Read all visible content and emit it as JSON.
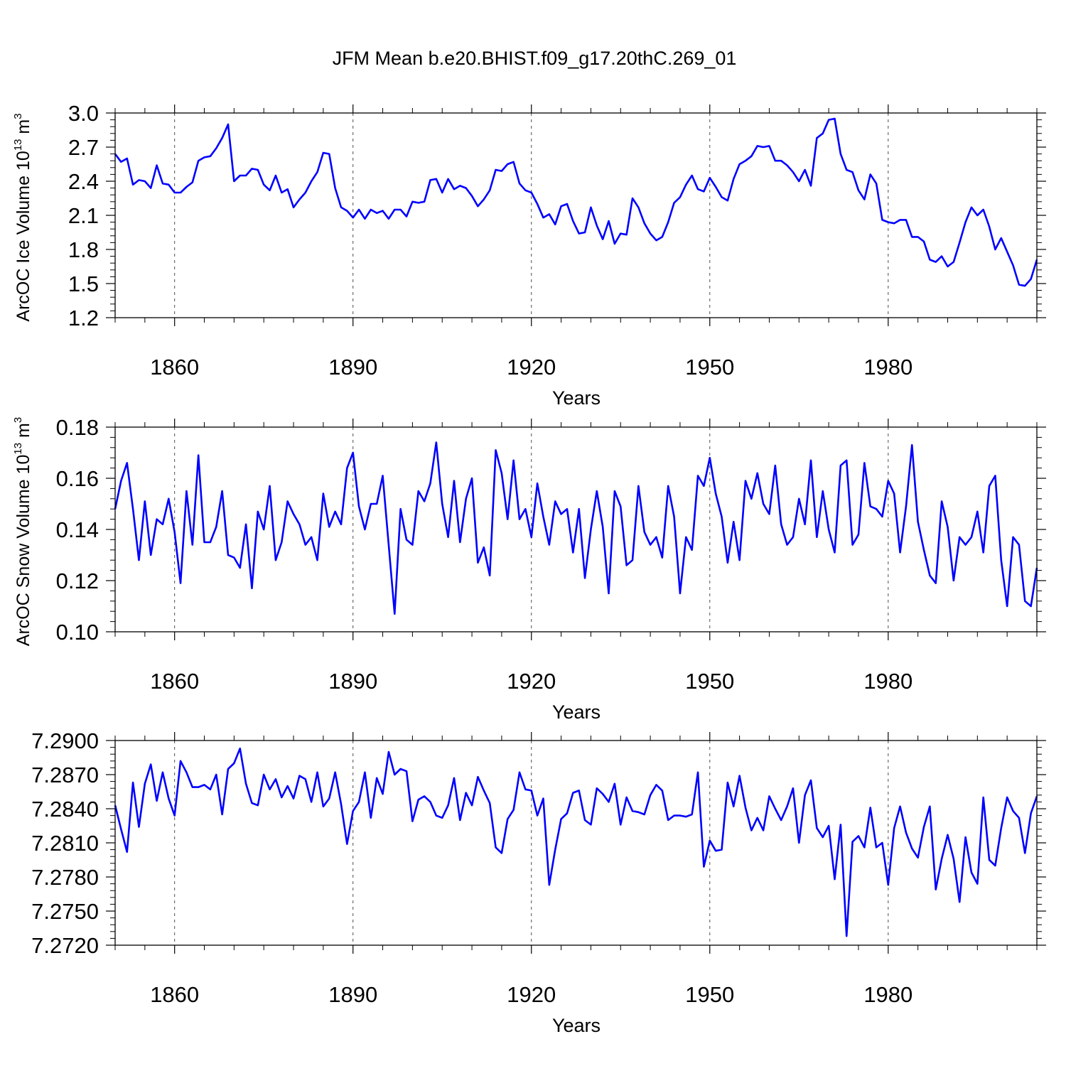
{
  "title": "JFM Mean b.e20.BHIST.f09_g17.20thC.269_01",
  "colors": {
    "series": "#0000ff",
    "axes": "#000000",
    "background": "#ffffff"
  },
  "chart_data": [
    {
      "type": "line",
      "title": "JFM Mean b.e20.BHIST.f09_g17.20thC.269_01",
      "xlabel": "Years",
      "ylabel_parts": [
        "ArcOC Ice Volume 10",
        "13",
        " m",
        "3"
      ],
      "xlim": [
        1850,
        2005
      ],
      "ylim": [
        1.2,
        3.0
      ],
      "xticks": [
        1860,
        1890,
        1920,
        1950,
        1980
      ],
      "xtick_labels": [
        "1860",
        "1890",
        "1920",
        "1950",
        "1980"
      ],
      "yticks": [
        1.2,
        1.5,
        1.8,
        2.1,
        2.4,
        2.7,
        3.0
      ],
      "ytick_labels": [
        "1.2",
        "1.5",
        "1.8",
        "2.1",
        "2.4",
        "2.7",
        "3.0"
      ],
      "x_start": 1850,
      "x_step": 1,
      "grid": "dashed vertical at major x ticks",
      "values": [
        2.64,
        2.57,
        2.6,
        2.37,
        2.41,
        2.4,
        2.34,
        2.54,
        2.38,
        2.37,
        2.3,
        2.3,
        2.35,
        2.39,
        2.58,
        2.61,
        2.62,
        2.69,
        2.78,
        2.9,
        2.4,
        2.45,
        2.45,
        2.51,
        2.5,
        2.37,
        2.32,
        2.45,
        2.3,
        2.33,
        2.17,
        2.24,
        2.3,
        2.4,
        2.48,
        2.65,
        2.64,
        2.34,
        2.17,
        2.14,
        2.08,
        2.15,
        2.07,
        2.15,
        2.12,
        2.14,
        2.07,
        2.15,
        2.15,
        2.09,
        2.22,
        2.21,
        2.22,
        2.41,
        2.42,
        2.3,
        2.42,
        2.33,
        2.36,
        2.34,
        2.27,
        2.18,
        2.24,
        2.32,
        2.5,
        2.49,
        2.55,
        2.57,
        2.38,
        2.32,
        2.3,
        2.2,
        2.08,
        2.11,
        2.02,
        2.18,
        2.2,
        2.05,
        1.94,
        1.95,
        2.17,
        2.01,
        1.89,
        2.05,
        1.85,
        1.94,
        1.93,
        2.25,
        2.17,
        2.03,
        1.94,
        1.88,
        1.91,
        2.04,
        2.21,
        2.26,
        2.37,
        2.45,
        2.33,
        2.31,
        2.43,
        2.35,
        2.26,
        2.23,
        2.42,
        2.55,
        2.58,
        2.62,
        2.71,
        2.7,
        2.71,
        2.58,
        2.58,
        2.54,
        2.48,
        2.4,
        2.5,
        2.36,
        2.78,
        2.82,
        2.94,
        2.95,
        2.64,
        2.5,
        2.48,
        2.32,
        2.24,
        2.46,
        2.38,
        2.06,
        2.04,
        2.03,
        2.06,
        2.06,
        1.91,
        1.91,
        1.87,
        1.71,
        1.69,
        1.74,
        1.65,
        1.69,
        1.86,
        2.04,
        2.17,
        2.1,
        2.15,
        2.0,
        1.8,
        1.9,
        1.78,
        1.66,
        1.49,
        1.48,
        1.54,
        1.71
      ]
    },
    {
      "type": "line",
      "xlabel": "Years",
      "ylabel_parts": [
        "ArcOC Snow Volume 10",
        "13",
        " m",
        "3"
      ],
      "xlim": [
        1850,
        2005
      ],
      "ylim": [
        0.1,
        0.18
      ],
      "xticks": [
        1860,
        1890,
        1920,
        1950,
        1980
      ],
      "xtick_labels": [
        "1860",
        "1890",
        "1920",
        "1950",
        "1980"
      ],
      "yticks": [
        0.1,
        0.12,
        0.14,
        0.16,
        0.18
      ],
      "ytick_labels": [
        "0.10",
        "0.12",
        "0.14",
        "0.16",
        "0.18"
      ],
      "x_start": 1850,
      "x_step": 1,
      "grid": "dashed vertical at major x ticks",
      "values": [
        0.148,
        0.159,
        0.166,
        0.148,
        0.128,
        0.151,
        0.13,
        0.144,
        0.142,
        0.152,
        0.139,
        0.119,
        0.155,
        0.134,
        0.169,
        0.135,
        0.135,
        0.141,
        0.155,
        0.13,
        0.129,
        0.125,
        0.142,
        0.117,
        0.147,
        0.14,
        0.157,
        0.128,
        0.135,
        0.151,
        0.146,
        0.142,
        0.134,
        0.137,
        0.128,
        0.154,
        0.141,
        0.147,
        0.142,
        0.164,
        0.17,
        0.149,
        0.14,
        0.15,
        0.15,
        0.161,
        0.134,
        0.107,
        0.148,
        0.136,
        0.134,
        0.155,
        0.151,
        0.158,
        0.174,
        0.15,
        0.137,
        0.159,
        0.135,
        0.152,
        0.16,
        0.127,
        0.133,
        0.122,
        0.171,
        0.162,
        0.144,
        0.167,
        0.144,
        0.148,
        0.137,
        0.158,
        0.145,
        0.134,
        0.151,
        0.146,
        0.148,
        0.131,
        0.148,
        0.121,
        0.14,
        0.155,
        0.141,
        0.115,
        0.155,
        0.149,
        0.126,
        0.128,
        0.157,
        0.139,
        0.134,
        0.137,
        0.129,
        0.157,
        0.145,
        0.115,
        0.137,
        0.132,
        0.161,
        0.157,
        0.168,
        0.154,
        0.145,
        0.127,
        0.143,
        0.128,
        0.159,
        0.152,
        0.162,
        0.15,
        0.146,
        0.165,
        0.142,
        0.134,
        0.137,
        0.152,
        0.142,
        0.167,
        0.137,
        0.155,
        0.14,
        0.131,
        0.165,
        0.167,
        0.134,
        0.138,
        0.166,
        0.149,
        0.148,
        0.145,
        0.159,
        0.154,
        0.131,
        0.149,
        0.173,
        0.143,
        0.132,
        0.122,
        0.119,
        0.151,
        0.141,
        0.12,
        0.137,
        0.134,
        0.137,
        0.147,
        0.131,
        0.157,
        0.161,
        0.128,
        0.11,
        0.137,
        0.134,
        0.112,
        0.11,
        0.125
      ]
    },
    {
      "type": "line",
      "xlabel": "Years",
      "ylabel_parts": [
        "",
        "",
        "",
        ""
      ],
      "xlim": [
        1850,
        2005
      ],
      "ylim": [
        7.272,
        7.29
      ],
      "xticks": [
        1860,
        1890,
        1920,
        1950,
        1980
      ],
      "xtick_labels": [
        "1860",
        "1890",
        "1920",
        "1950",
        "1980"
      ],
      "yticks": [
        7.272,
        7.275,
        7.278,
        7.281,
        7.284,
        7.287,
        7.29
      ],
      "ytick_labels": [
        "7.2720",
        "7.2750",
        "7.2780",
        "7.2810",
        "7.2840",
        "7.2870",
        "7.2900"
      ],
      "x_start": 1850,
      "x_step": 1,
      "grid": "dashed vertical at major x ticks",
      "values": [
        7.2843,
        7.2822,
        7.2802,
        7.2863,
        7.2824,
        7.2862,
        7.2879,
        7.2847,
        7.2872,
        7.2849,
        7.2834,
        7.2882,
        7.2872,
        7.2859,
        7.2859,
        7.2861,
        7.2857,
        7.287,
        7.2835,
        7.2875,
        7.288,
        7.2893,
        7.2862,
        7.2845,
        7.2843,
        7.287,
        7.2857,
        7.2866,
        7.285,
        7.286,
        7.2849,
        7.2869,
        7.2866,
        7.2846,
        7.2872,
        7.2842,
        7.2849,
        7.2872,
        7.2844,
        7.2809,
        7.2838,
        7.2846,
        7.2872,
        7.2832,
        7.2867,
        7.2853,
        7.289,
        7.287,
        7.2875,
        7.2873,
        7.2829,
        7.2848,
        7.2851,
        7.2846,
        7.2834,
        7.2832,
        7.2843,
        7.2867,
        7.283,
        7.2854,
        7.2843,
        7.2868,
        7.2856,
        7.2845,
        7.2806,
        7.2801,
        7.2831,
        7.2839,
        7.2872,
        7.2857,
        7.2856,
        7.2834,
        7.2849,
        7.2773,
        7.2804,
        7.2831,
        7.2836,
        7.2854,
        7.2856,
        7.283,
        7.2826,
        7.2858,
        7.2853,
        7.2846,
        7.2862,
        7.2826,
        7.285,
        7.2838,
        7.2837,
        7.2835,
        7.2852,
        7.2861,
        7.2856,
        7.283,
        7.2834,
        7.2834,
        7.2833,
        7.2835,
        7.2872,
        7.2789,
        7.2812,
        7.2803,
        7.2804,
        7.2863,
        7.2842,
        7.2869,
        7.2841,
        7.2821,
        7.2832,
        7.2821,
        7.2851,
        7.284,
        7.283,
        7.2842,
        7.2858,
        7.281,
        7.2852,
        7.2865,
        7.2823,
        7.2815,
        7.2825,
        7.2778,
        7.2826,
        7.2728,
        7.2811,
        7.2816,
        7.2806,
        7.2841,
        7.2806,
        7.281,
        7.2773,
        7.2823,
        7.2842,
        7.2819,
        7.2805,
        7.2797,
        7.2824,
        7.2842,
        7.2769,
        7.2796,
        7.2817,
        7.2796,
        7.2758,
        7.2815,
        7.2784,
        7.2774,
        7.285,
        7.2795,
        7.279,
        7.2823,
        7.285,
        7.2838,
        7.2832,
        7.2801,
        7.2836,
        7.2851
      ]
    }
  ]
}
